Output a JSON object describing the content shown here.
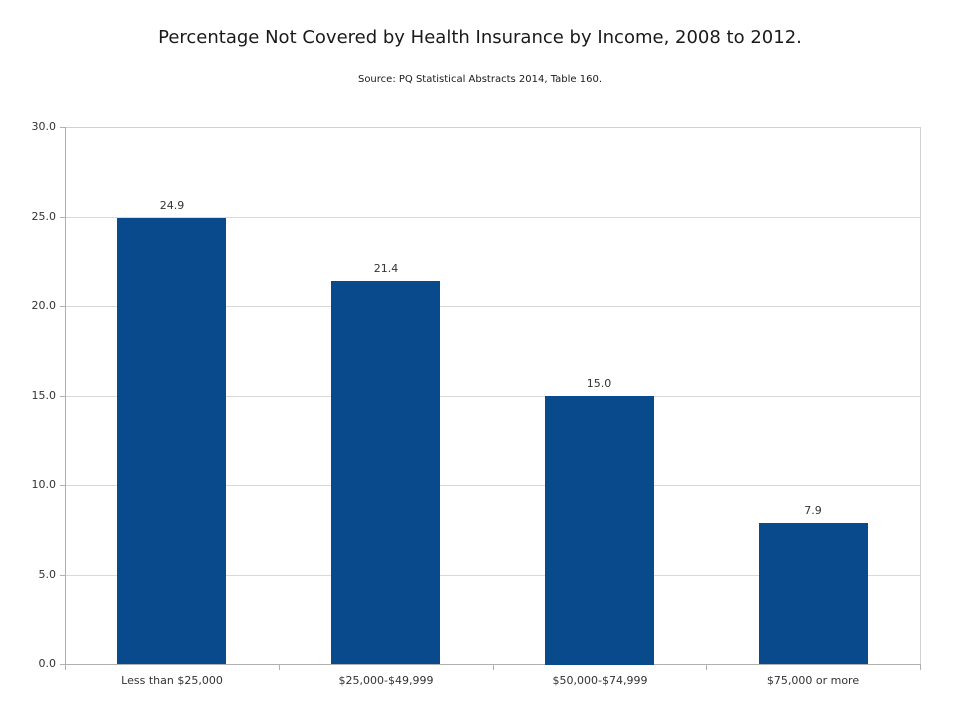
{
  "title": "Percentage Not Covered by Health Insurance by Income, 2008 to 2012.",
  "subtitle": "Source: PQ Statistical Abstracts 2014, Table 160.",
  "colors": {
    "bar": "#084a8c",
    "gridline": "#d9d9d9",
    "plot_border": "#d0d0d0",
    "axis": "#b0b0b0",
    "text": "#333333",
    "title_text": "#1a1a1a",
    "background": "#ffffff"
  },
  "chart_data": {
    "type": "bar",
    "title": "Percentage Not Covered by Health Insurance by Income, 2008 to 2012.",
    "subtitle": "Source: PQ Statistical Abstracts 2014, Table 160.",
    "categories": [
      "Less than $25,000",
      "$25,000-$49,999",
      "$50,000-$74,999",
      "$75,000 or more"
    ],
    "values": [
      24.9,
      21.4,
      15.0,
      7.9
    ],
    "data_labels": [
      "24.9",
      "21.4",
      "15.0",
      "7.9"
    ],
    "xlabel": "",
    "ylabel": "",
    "ylim": [
      0,
      30
    ],
    "ytick_interval": 5,
    "ytick_labels": [
      "0.0",
      "5.0",
      "10.0",
      "15.0",
      "20.0",
      "25.0",
      "30.0"
    ],
    "grid": true,
    "legend": false,
    "data_labels_shown": true
  }
}
